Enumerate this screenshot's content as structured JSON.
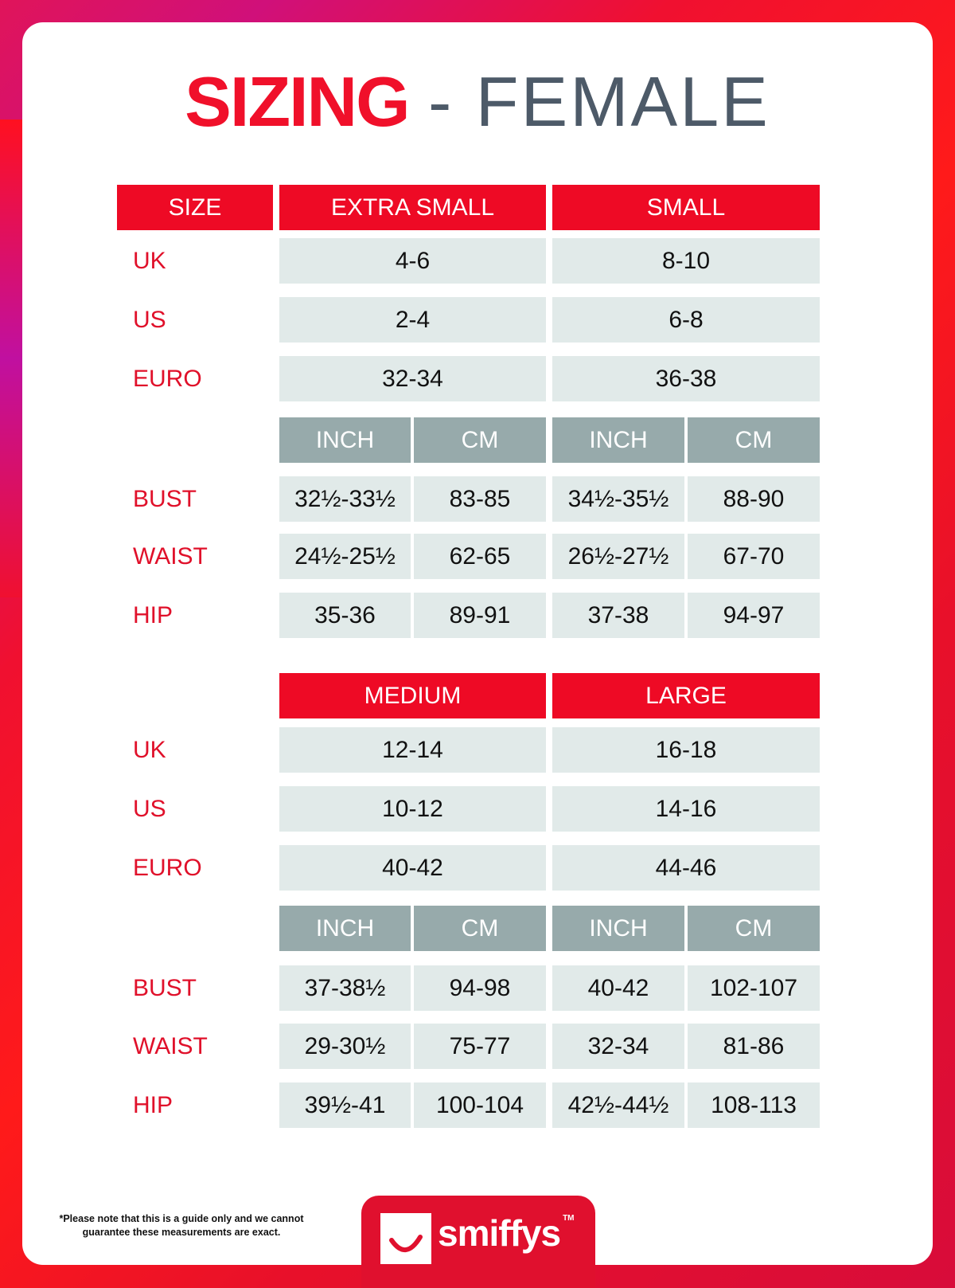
{
  "title": {
    "bold": "SIZING",
    "light": "- FEMALE"
  },
  "colors": {
    "accent_red": "#ee0a25",
    "subheader_gray": "#97aaab",
    "cell_bg": "#e1eae9",
    "title_gray": "#4d5a68"
  },
  "sections": [
    {
      "size_label": "SIZE",
      "sizes": [
        "EXTRA SMALL",
        "SMALL"
      ],
      "conversion_rows": [
        {
          "label": "UK",
          "values": [
            "4-6",
            "8-10"
          ]
        },
        {
          "label": "US",
          "values": [
            "2-4",
            "6-8"
          ]
        },
        {
          "label": "EURO",
          "values": [
            "32-34",
            "36-38"
          ]
        }
      ],
      "units": [
        "INCH",
        "CM",
        "INCH",
        "CM"
      ],
      "measurement_rows": [
        {
          "label": "BUST",
          "values": [
            "32½-33½",
            "83-85",
            "34½-35½",
            "88-90"
          ]
        },
        {
          "label": "WAIST",
          "values": [
            "24½-25½",
            "62-65",
            "26½-27½",
            "67-70"
          ]
        },
        {
          "label": "HIP",
          "values": [
            "35-36",
            "89-91",
            "37-38",
            "94-97"
          ]
        }
      ]
    },
    {
      "size_label": "",
      "sizes": [
        "MEDIUM",
        "LARGE"
      ],
      "conversion_rows": [
        {
          "label": "UK",
          "values": [
            "12-14",
            "16-18"
          ]
        },
        {
          "label": "US",
          "values": [
            "10-12",
            "14-16"
          ]
        },
        {
          "label": "EURO",
          "values": [
            "40-42",
            "44-46"
          ]
        }
      ],
      "units": [
        "INCH",
        "CM",
        "INCH",
        "CM"
      ],
      "measurement_rows": [
        {
          "label": "BUST",
          "values": [
            "37-38½",
            "94-98",
            "40-42",
            "102-107"
          ]
        },
        {
          "label": "WAIST",
          "values": [
            "29-30½",
            "75-77",
            "32-34",
            "81-86"
          ]
        },
        {
          "label": "HIP",
          "values": [
            "39½-41",
            "100-104",
            "42½-44½",
            "108-113"
          ]
        }
      ]
    }
  ],
  "footer": {
    "note": "*Please note that this is a guide only and we cannot guarantee these measurements are exact.",
    "logo_text": "smiffys",
    "trademark": "TM"
  }
}
